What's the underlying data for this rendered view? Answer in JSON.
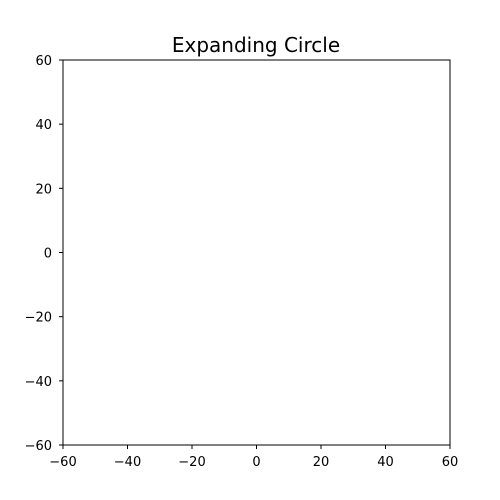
{
  "chart_data": {
    "type": "scatter",
    "title": "Expanding Circle",
    "xlabel": "",
    "ylabel": "",
    "xlim": [
      -60,
      60
    ],
    "ylim": [
      -60,
      60
    ],
    "x_ticks": [
      -60,
      -40,
      -20,
      0,
      20,
      40,
      60
    ],
    "y_ticks": [
      -60,
      -40,
      -20,
      0,
      20,
      40,
      60
    ],
    "x_tick_labels": [
      "−60",
      "−40",
      "−20",
      "0",
      "20",
      "40",
      "60"
    ],
    "y_tick_labels": [
      "−60",
      "−40",
      "−20",
      "0",
      "20",
      "40",
      "60"
    ],
    "grid": false,
    "series": [
      {
        "values": []
      }
    ]
  }
}
